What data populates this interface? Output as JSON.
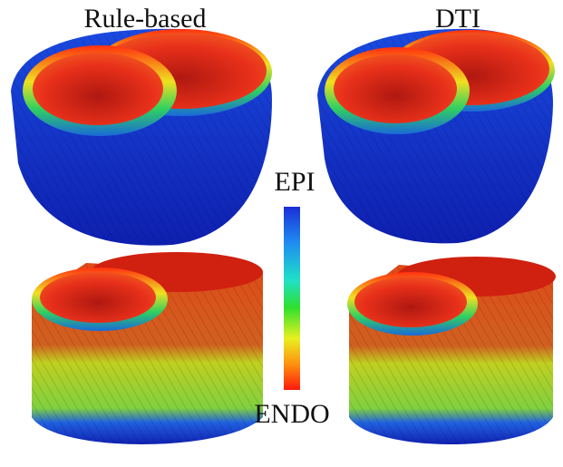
{
  "panels": {
    "rule_based": {
      "title": "Rule-based"
    },
    "dti": {
      "title": "DTI"
    }
  },
  "colorbar": {
    "top_label": "EPI",
    "bottom_label": "ENDO"
  }
}
